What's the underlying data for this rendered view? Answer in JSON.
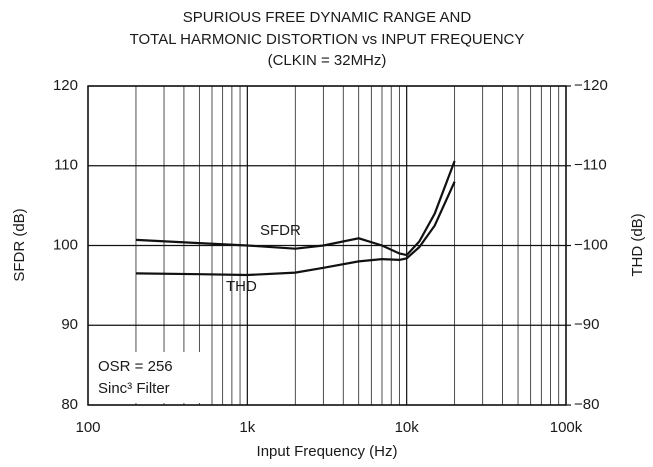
{
  "chart_data": {
    "type": "line",
    "title": [
      "SPURIOUS FREE DYNAMIC RANGE AND",
      "TOTAL HARMONIC DISTORTION vs INPUT FREQUENCY",
      "(CLKIN = 32MHz)"
    ],
    "x_label": "Input Frequency (Hz)",
    "y_label": "SFDR (dB)",
    "y2_label": "THD (dB)",
    "x": [
      200,
      500,
      1000,
      2000,
      3000,
      5000,
      7000,
      9000,
      10000,
      12000,
      15000,
      20000
    ],
    "series": [
      {
        "name": "SFDR",
        "color": "#111111",
        "values": [
          100.7,
          100.3,
          100.0,
          99.6,
          100.0,
          100.9,
          100.0,
          99.0,
          98.8,
          100.5,
          104.0,
          110.6
        ]
      },
      {
        "name": "THD",
        "color": "#111111",
        "values": [
          96.5,
          96.4,
          96.3,
          96.6,
          97.2,
          98.0,
          98.3,
          98.2,
          98.4,
          99.8,
          102.5,
          108.0
        ]
      }
    ],
    "annotations": [
      "OSR = 256",
      "Sinc³ Filter"
    ],
    "xscale": "log",
    "xlim": [
      100,
      100000
    ],
    "xticks": [
      100,
      {
        "value": 1000,
        "label": "1k"
      },
      {
        "value": 10000,
        "label": "10k"
      },
      {
        "value": 100000,
        "label": "100k"
      }
    ],
    "xminorticks": [
      200,
      300,
      400,
      500,
      600,
      700,
      800,
      900,
      2000,
      3000,
      4000,
      5000,
      6000,
      7000,
      8000,
      9000,
      20000,
      30000,
      40000,
      50000,
      60000,
      70000,
      80000,
      90000
    ],
    "ylim": [
      80,
      120
    ],
    "yticks": [
      80,
      90,
      100,
      110,
      120
    ],
    "y2lim": [
      -80,
      -120
    ],
    "y2ticks": [
      {
        "value": -80,
        "label": "−80"
      },
      {
        "value": -90,
        "label": "−90"
      },
      {
        "value": -100,
        "label": "−100"
      },
      {
        "value": -110,
        "label": "−110"
      },
      {
        "value": -120,
        "label": "−120"
      }
    ],
    "grid": true
  }
}
